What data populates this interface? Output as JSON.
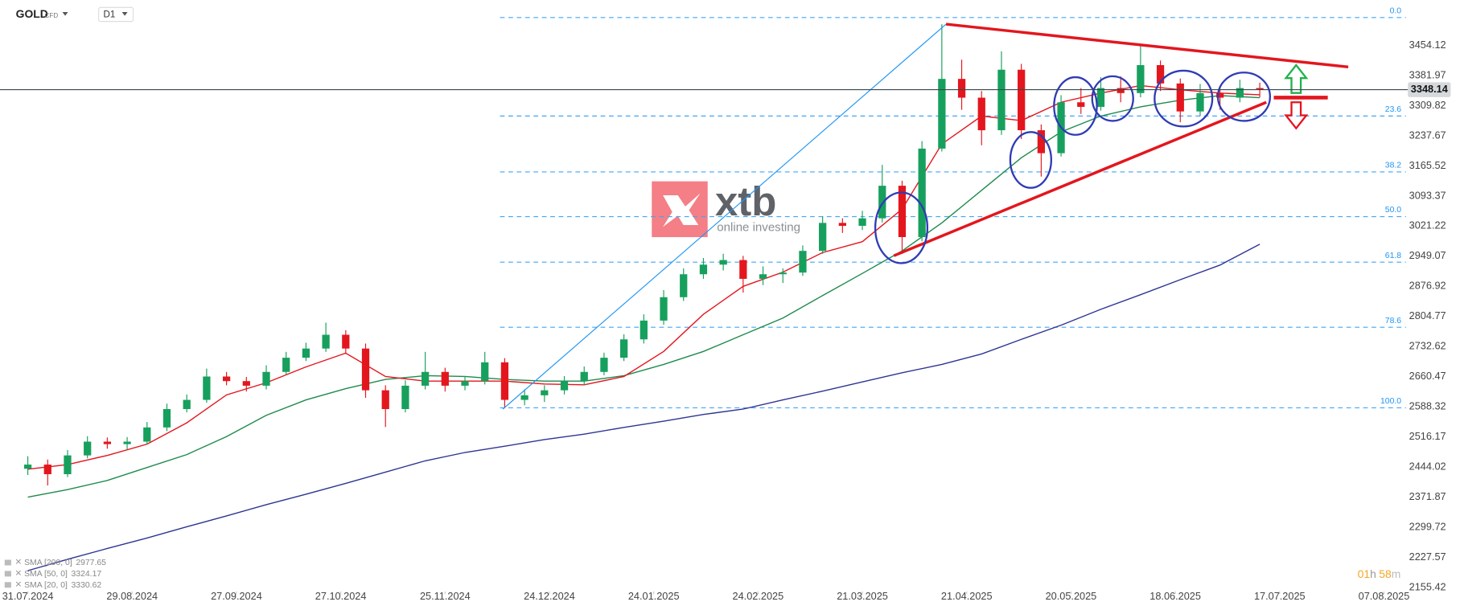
{
  "chart_data": {
    "type": "candlestick",
    "symbol": "GOLD",
    "instrument_type": "CFD",
    "timeframe": "D1",
    "watermark": {
      "brand": "xtb",
      "tagline": "online investing"
    },
    "countdown": [
      "01",
      "h",
      "58",
      "m"
    ],
    "up_color": "#17a05d",
    "down_color": "#e3161e",
    "x": [
      0,
      4,
      8,
      12,
      16,
      20,
      24,
      28,
      32,
      36,
      40,
      44,
      48,
      52,
      56,
      60,
      64,
      68,
      72,
      76,
      80,
      84,
      88,
      92,
      96,
      100,
      104,
      108,
      112,
      116,
      120,
      124,
      128,
      132,
      136,
      140,
      144,
      148,
      152,
      156,
      160,
      164,
      168,
      172,
      176,
      180,
      184,
      188,
      192,
      196,
      200,
      204,
      208,
      212,
      216,
      220,
      224,
      228,
      232,
      236,
      240,
      244,
      248
    ],
    "open": [
      2440,
      2450,
      2427,
      2472,
      2505,
      2499,
      2505,
      2539,
      2583,
      2605,
      2661,
      2650,
      2639,
      2672,
      2706,
      2728,
      2761,
      2728,
      2628,
      2583,
      2639,
      2672,
      2639,
      2650,
      2695,
      2605,
      2616,
      2628,
      2650,
      2672,
      2706,
      2750,
      2795,
      2851,
      2906,
      2929,
      2940,
      2895,
      2906,
      2910,
      2962,
      3029,
      3022,
      3040,
      3118,
      2995,
      3207,
      3374,
      3329,
      3251,
      3396,
      3251,
      3196,
      3318,
      3307,
      3352,
      3340,
      3407,
      3363,
      3296,
      3340,
      3329,
      3352
    ],
    "high": [
      2470,
      2462,
      2485,
      2518,
      2515,
      2516,
      2552,
      2596,
      2618,
      2680,
      2672,
      2660,
      2688,
      2720,
      2742,
      2790,
      2772,
      2740,
      2640,
      2652,
      2720,
      2682,
      2662,
      2720,
      2705,
      2630,
      2640,
      2662,
      2685,
      2718,
      2762,
      2810,
      2868,
      2920,
      2945,
      2955,
      2950,
      2925,
      2920,
      2975,
      3045,
      3040,
      3058,
      3168,
      3130,
      3225,
      3505,
      3420,
      3345,
      3440,
      3410,
      3265,
      3335,
      3352,
      3378,
      3380,
      3458,
      3418,
      3375,
      3362,
      3352,
      3372,
      3365
    ],
    "low": [
      2425,
      2400,
      2420,
      2465,
      2488,
      2486,
      2498,
      2530,
      2575,
      2598,
      2640,
      2625,
      2630,
      2665,
      2698,
      2720,
      2715,
      2610,
      2540,
      2575,
      2630,
      2625,
      2628,
      2642,
      2585,
      2592,
      2600,
      2618,
      2640,
      2664,
      2698,
      2740,
      2785,
      2842,
      2895,
      2915,
      2862,
      2880,
      2885,
      2902,
      2955,
      3005,
      3012,
      3030,
      2955,
      2985,
      3200,
      3300,
      3215,
      3240,
      3230,
      3140,
      3188,
      3290,
      3298,
      3318,
      3330,
      3345,
      3270,
      3285,
      3300,
      3318,
      3330
    ],
    "close": [
      2450,
      2427,
      2472,
      2505,
      2499,
      2505,
      2539,
      2583,
      2605,
      2661,
      2650,
      2639,
      2672,
      2706,
      2728,
      2761,
      2728,
      2628,
      2583,
      2639,
      2672,
      2639,
      2650,
      2695,
      2605,
      2616,
      2628,
      2650,
      2672,
      2706,
      2750,
      2795,
      2851,
      2906,
      2929,
      2940,
      2895,
      2906,
      2910,
      2962,
      3029,
      3022,
      3040,
      3118,
      2995,
      3207,
      3374,
      3329,
      3251,
      3396,
      3251,
      3196,
      3318,
      3307,
      3352,
      3340,
      3407,
      3363,
      3296,
      3340,
      3329,
      3352,
      3348.14
    ],
    "last_price": 3348.14,
    "lines": [
      {
        "name": "SMA [200, 0]",
        "legend_value": 2977.65,
        "color": "#2e3592",
        "x": [
          0,
          8,
          16,
          24,
          32,
          40,
          48,
          56,
          64,
          72,
          80,
          88,
          96,
          104,
          112,
          120,
          128,
          136,
          144,
          152,
          160,
          168,
          176,
          184,
          192,
          200,
          208,
          216,
          224,
          232,
          240,
          248
        ],
        "values": [
          2196,
          2223,
          2249,
          2274,
          2301,
          2327,
          2354,
          2379,
          2405,
          2432,
          2459,
          2479,
          2494,
          2510,
          2523,
          2539,
          2554,
          2570,
          2583,
          2605,
          2626,
          2648,
          2670,
          2690,
          2715,
          2750,
          2784,
          2822,
          2857,
          2893,
          2928,
          2978
        ]
      },
      {
        "name": "SMA [50, 0]",
        "legend_value": 3324.17,
        "color": "#1e8a4c",
        "x": [
          0,
          8,
          16,
          24,
          32,
          40,
          48,
          56,
          64,
          72,
          80,
          88,
          96,
          104,
          112,
          120,
          128,
          136,
          144,
          152,
          160,
          168,
          176,
          184,
          192,
          200,
          208,
          216,
          224,
          232,
          240,
          248
        ],
        "values": [
          2372,
          2390,
          2412,
          2443,
          2474,
          2517,
          2568,
          2605,
          2632,
          2654,
          2663,
          2661,
          2654,
          2650,
          2650,
          2663,
          2690,
          2721,
          2761,
          2801,
          2855,
          2908,
          2962,
          3029,
          3107,
          3185,
          3247,
          3285,
          3307,
          3323,
          3334,
          3329
        ]
      },
      {
        "name": "SMA [20, 0]",
        "legend_value": 3330.62,
        "color": "#e3161e",
        "x": [
          0,
          8,
          16,
          24,
          32,
          40,
          48,
          56,
          64,
          72,
          80,
          88,
          96,
          104,
          112,
          120,
          128,
          136,
          144,
          152,
          160,
          168,
          176,
          184,
          192,
          200,
          208,
          216,
          224,
          232,
          240,
          248
        ],
        "values": [
          2439,
          2450,
          2472,
          2499,
          2550,
          2617,
          2646,
          2684,
          2717,
          2661,
          2650,
          2650,
          2650,
          2643,
          2641,
          2661,
          2721,
          2810,
          2877,
          2911,
          2958,
          2984,
          3062,
          3218,
          3285,
          3274,
          3318,
          3340,
          3358,
          3348,
          3340,
          3336
        ]
      }
    ],
    "fib_levels": [
      {
        "label": "0.0",
        "value": 3521
      },
      {
        "label": "23.6",
        "value": 3285
      },
      {
        "label": "38.2",
        "value": 3151
      },
      {
        "label": "50.0",
        "value": 3044
      },
      {
        "label": "61.8",
        "value": 2935
      },
      {
        "label": "78.6",
        "value": 2779
      },
      {
        "label": "100.0",
        "value": 2586
      }
    ],
    "xlim": [
      -5.6,
      275
    ],
    "ylim": [
      2115,
      3563
    ],
    "xticks": [
      {
        "value": 0,
        "label": "31.07.2024"
      },
      {
        "value": 21,
        "label": "29.08.2024"
      },
      {
        "value": 42,
        "label": "27.09.2024"
      },
      {
        "value": 63,
        "label": "27.10.2024"
      },
      {
        "value": 84,
        "label": "25.11.2024"
      },
      {
        "value": 105,
        "label": "24.12.2024"
      },
      {
        "value": 126,
        "label": "24.01.2025"
      },
      {
        "value": 147,
        "label": "24.02.2025"
      },
      {
        "value": 168,
        "label": "21.03.2025"
      },
      {
        "value": 189,
        "label": "21.04.2025"
      },
      {
        "value": 210,
        "label": "20.05.2025"
      },
      {
        "value": 231,
        "label": "18.06.2025"
      },
      {
        "value": 252,
        "label": "17.07.2025"
      },
      {
        "value": 273,
        "label": "07.08.2025"
      }
    ],
    "yticks": [
      3454.12,
      3381.97,
      3309.82,
      3237.67,
      3165.52,
      3093.37,
      3021.22,
      2949.07,
      2876.92,
      2804.77,
      2732.62,
      2660.47,
      2588.32,
      2516.17,
      2444.02,
      2371.87,
      2299.72,
      2227.57,
      2155.42
    ]
  }
}
